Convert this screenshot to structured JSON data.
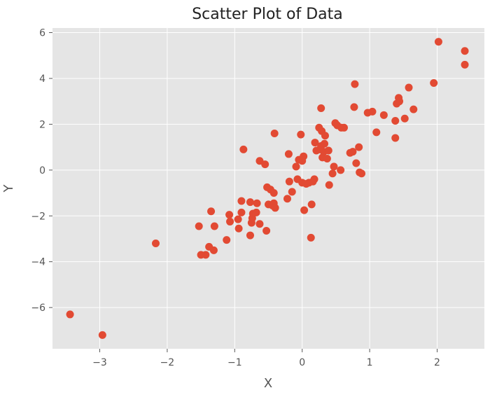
{
  "chart_data": {
    "type": "scatter",
    "title": "Scatter Plot of Data",
    "xlabel": "X",
    "ylabel": "Y",
    "xlim": [
      -3.7,
      2.7
    ],
    "ylim": [
      -7.8,
      6.2
    ],
    "xticks": [
      -3,
      -2,
      -1,
      0,
      1,
      2
    ],
    "yticks": [
      -6,
      -4,
      -2,
      0,
      2,
      4,
      6
    ],
    "tick_labels_x": [
      "−3",
      "−2",
      "−1",
      "0",
      "1",
      "2"
    ],
    "tick_labels_y": [
      "−6",
      "−4",
      "−2",
      "0",
      "2",
      "4",
      "6"
    ],
    "grid": true,
    "style": "ggplot",
    "colors": {
      "background": "#e5e5e5",
      "grid": "#ffffff",
      "point": "#e24a33"
    },
    "points": [
      {
        "x": -3.44,
        "y": -6.3
      },
      {
        "x": -2.96,
        "y": -7.2
      },
      {
        "x": -2.17,
        "y": -3.2
      },
      {
        "x": -1.53,
        "y": -2.45
      },
      {
        "x": -1.5,
        "y": -3.7
      },
      {
        "x": -1.43,
        "y": -3.7
      },
      {
        "x": -1.38,
        "y": -3.35
      },
      {
        "x": -1.35,
        "y": -1.8
      },
      {
        "x": -1.31,
        "y": -3.5
      },
      {
        "x": -1.3,
        "y": -2.45
      },
      {
        "x": -1.12,
        "y": -3.05
      },
      {
        "x": -1.08,
        "y": -1.95
      },
      {
        "x": -1.07,
        "y": -2.25
      },
      {
        "x": -0.95,
        "y": -2.15
      },
      {
        "x": -0.94,
        "y": -2.55
      },
      {
        "x": -0.9,
        "y": -1.85
      },
      {
        "x": -0.9,
        "y": -1.35
      },
      {
        "x": -0.87,
        "y": 0.9
      },
      {
        "x": -0.77,
        "y": -2.85
      },
      {
        "x": -0.77,
        "y": -1.4
      },
      {
        "x": -0.75,
        "y": -2.3
      },
      {
        "x": -0.74,
        "y": -2.1
      },
      {
        "x": -0.73,
        "y": -1.9
      },
      {
        "x": -0.68,
        "y": -1.85
      },
      {
        "x": -0.67,
        "y": -1.45
      },
      {
        "x": -0.63,
        "y": -2.35
      },
      {
        "x": -0.63,
        "y": 0.4
      },
      {
        "x": -0.55,
        "y": 0.25
      },
      {
        "x": -0.53,
        "y": -2.65
      },
      {
        "x": -0.52,
        "y": -0.75
      },
      {
        "x": -0.5,
        "y": -1.5
      },
      {
        "x": -0.47,
        "y": -0.85
      },
      {
        "x": -0.44,
        "y": -1.55
      },
      {
        "x": -0.42,
        "y": -1.0
      },
      {
        "x": -0.42,
        "y": -1.45
      },
      {
        "x": -0.41,
        "y": 1.6
      },
      {
        "x": -0.4,
        "y": -1.65
      },
      {
        "x": -0.22,
        "y": -1.25
      },
      {
        "x": -0.2,
        "y": 0.7
      },
      {
        "x": -0.19,
        "y": -0.5
      },
      {
        "x": -0.15,
        "y": -0.95
      },
      {
        "x": -0.09,
        "y": 0.15
      },
      {
        "x": -0.07,
        "y": -0.4
      },
      {
        "x": -0.05,
        "y": 0.45
      },
      {
        "x": -0.02,
        "y": 1.55
      },
      {
        "x": 0.0,
        "y": -0.55
      },
      {
        "x": 0.0,
        "y": 0.4
      },
      {
        "x": 0.02,
        "y": 0.6
      },
      {
        "x": 0.03,
        "y": -1.75
      },
      {
        "x": 0.06,
        "y": -0.6
      },
      {
        "x": 0.1,
        "y": -0.55
      },
      {
        "x": 0.13,
        "y": -2.95
      },
      {
        "x": 0.14,
        "y": -1.5
      },
      {
        "x": 0.16,
        "y": -0.5
      },
      {
        "x": 0.18,
        "y": -0.4
      },
      {
        "x": 0.19,
        "y": 1.2
      },
      {
        "x": 0.21,
        "y": 0.85
      },
      {
        "x": 0.25,
        "y": 1.85
      },
      {
        "x": 0.26,
        "y": 0.9
      },
      {
        "x": 0.28,
        "y": 2.7
      },
      {
        "x": 0.28,
        "y": 1.05
      },
      {
        "x": 0.29,
        "y": 1.7
      },
      {
        "x": 0.3,
        "y": 0.55
      },
      {
        "x": 0.32,
        "y": 0.8
      },
      {
        "x": 0.33,
        "y": 1.15
      },
      {
        "x": 0.34,
        "y": 1.5
      },
      {
        "x": 0.37,
        "y": 0.5
      },
      {
        "x": 0.39,
        "y": 0.85
      },
      {
        "x": 0.4,
        "y": -0.65
      },
      {
        "x": 0.45,
        "y": -0.15
      },
      {
        "x": 0.47,
        "y": 0.15
      },
      {
        "x": 0.49,
        "y": 2.05
      },
      {
        "x": 0.52,
        "y": 1.95
      },
      {
        "x": 0.57,
        "y": 0.0
      },
      {
        "x": 0.58,
        "y": 1.85
      },
      {
        "x": 0.62,
        "y": 1.85
      },
      {
        "x": 0.71,
        "y": 0.75
      },
      {
        "x": 0.75,
        "y": 0.8
      },
      {
        "x": 0.77,
        "y": 2.75
      },
      {
        "x": 0.78,
        "y": 3.75
      },
      {
        "x": 0.8,
        "y": 0.3
      },
      {
        "x": 0.84,
        "y": 1.0
      },
      {
        "x": 0.85,
        "y": -0.1
      },
      {
        "x": 0.88,
        "y": -0.15
      },
      {
        "x": 0.97,
        "y": 2.5
      },
      {
        "x": 1.04,
        "y": 2.55
      },
      {
        "x": 1.1,
        "y": 1.65
      },
      {
        "x": 1.21,
        "y": 2.4
      },
      {
        "x": 1.38,
        "y": 1.4
      },
      {
        "x": 1.38,
        "y": 2.15
      },
      {
        "x": 1.4,
        "y": 2.9
      },
      {
        "x": 1.43,
        "y": 3.15
      },
      {
        "x": 1.44,
        "y": 3.0
      },
      {
        "x": 1.52,
        "y": 2.25
      },
      {
        "x": 1.58,
        "y": 3.6
      },
      {
        "x": 1.65,
        "y": 2.65
      },
      {
        "x": 1.95,
        "y": 3.8
      },
      {
        "x": 2.02,
        "y": 5.6
      },
      {
        "x": 2.41,
        "y": 5.2
      },
      {
        "x": 2.41,
        "y": 4.6
      }
    ]
  }
}
